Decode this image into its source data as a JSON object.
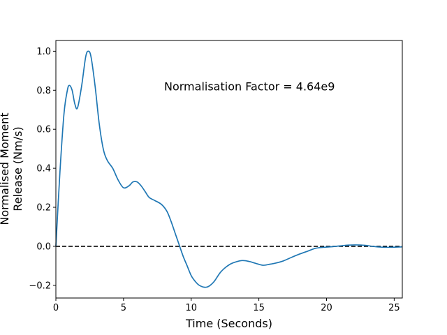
{
  "chart_data": {
    "type": "line",
    "title": "",
    "xlabel": "Time (Seconds)",
    "ylabel_lines": [
      "Normalised Moment",
      "Release (Nm/s)"
    ],
    "xlim": [
      0,
      25.6
    ],
    "ylim": [
      -0.265,
      1.055
    ],
    "grid": false,
    "legend": "none",
    "x_ticks": [
      {
        "value": 0,
        "label": "0"
      },
      {
        "value": 5,
        "label": "5"
      },
      {
        "value": 10,
        "label": "10"
      },
      {
        "value": 15,
        "label": "15"
      },
      {
        "value": 20,
        "label": "20"
      },
      {
        "value": 25,
        "label": "25"
      }
    ],
    "y_ticks": [
      {
        "value": -0.2,
        "label": "−0.2"
      },
      {
        "value": 0.0,
        "label": "0.0"
      },
      {
        "value": 0.2,
        "label": "0.2"
      },
      {
        "value": 0.4,
        "label": "0.4"
      },
      {
        "value": 0.6,
        "label": "0.6"
      },
      {
        "value": 0.8,
        "label": "0.8"
      },
      {
        "value": 1.0,
        "label": "1.0"
      }
    ],
    "annotation": {
      "text": "Normalisation Factor = 4.64e9",
      "x": 8.0,
      "y": 0.8
    },
    "reference_line": {
      "y": 0.0,
      "style": "dashed",
      "color": "#000000"
    },
    "series": [
      {
        "color": "#1f77b4",
        "x": [
          0,
          0.3,
          0.6,
          0.85,
          1.0,
          1.2,
          1.4,
          1.6,
          1.9,
          2.2,
          2.4,
          2.6,
          2.9,
          3.2,
          3.5,
          3.8,
          4.2,
          4.6,
          5.0,
          5.4,
          5.7,
          6.0,
          6.3,
          6.6,
          6.9,
          7.3,
          7.8,
          8.2,
          8.5,
          8.8,
          9.1,
          9.4,
          9.7,
          10.0,
          10.3,
          10.6,
          11.0,
          11.3,
          11.7,
          12.2,
          12.8,
          13.3,
          13.8,
          14.3,
          14.8,
          15.3,
          15.8,
          16.3,
          16.8,
          17.4,
          18.0,
          18.6,
          19.2,
          19.8,
          20.4,
          21.0,
          21.6,
          22.2,
          22.8,
          23.4,
          24.0,
          24.6,
          25.2,
          25.6
        ],
        "values": [
          0.0,
          0.38,
          0.68,
          0.8,
          0.825,
          0.8,
          0.73,
          0.71,
          0.82,
          0.97,
          1.0,
          0.97,
          0.82,
          0.63,
          0.5,
          0.44,
          0.4,
          0.34,
          0.3,
          0.31,
          0.33,
          0.33,
          0.31,
          0.28,
          0.25,
          0.235,
          0.215,
          0.18,
          0.13,
          0.07,
          0.01,
          -0.05,
          -0.1,
          -0.15,
          -0.18,
          -0.2,
          -0.21,
          -0.205,
          -0.18,
          -0.13,
          -0.095,
          -0.08,
          -0.073,
          -0.078,
          -0.088,
          -0.097,
          -0.092,
          -0.085,
          -0.075,
          -0.057,
          -0.04,
          -0.025,
          -0.01,
          -0.005,
          -0.002,
          0.002,
          0.006,
          0.007,
          0.005,
          0.0,
          -0.004,
          -0.005,
          -0.004,
          -0.003
        ]
      }
    ]
  }
}
